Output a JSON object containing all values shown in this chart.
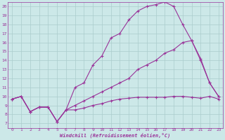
{
  "xlabel": "Windchill (Refroidissement éolien,°C)",
  "bg_color": "#cce8e8",
  "line_color": "#993399",
  "grid_color": "#aacccc",
  "xlim": [
    -0.5,
    23.5
  ],
  "ylim": [
    6.5,
    20.5
  ],
  "yticks": [
    7,
    8,
    9,
    10,
    11,
    12,
    13,
    14,
    15,
    16,
    17,
    18,
    19,
    20
  ],
  "xticks": [
    0,
    1,
    2,
    3,
    4,
    5,
    6,
    7,
    8,
    9,
    10,
    11,
    12,
    13,
    14,
    15,
    16,
    17,
    18,
    19,
    20,
    21,
    22,
    23
  ],
  "lines": [
    {
      "x": [
        0,
        1,
        2,
        3,
        4,
        5,
        6,
        7,
        8,
        9,
        10,
        11,
        12,
        13,
        14,
        15,
        16,
        17,
        18,
        19,
        20,
        21,
        22,
        23
      ],
      "y": [
        9.7,
        10.0,
        8.3,
        8.8,
        8.8,
        7.2,
        8.5,
        11.0,
        11.5,
        13.5,
        14.5,
        16.5,
        17.0,
        18.5,
        19.5,
        20.0,
        20.2,
        20.5,
        20.0,
        18.0,
        16.2,
        14.0,
        11.5,
        10.0
      ]
    },
    {
      "x": [
        0,
        1,
        2,
        3,
        4,
        5,
        6,
        7,
        8,
        9,
        10,
        11,
        12,
        13,
        14,
        15,
        16,
        17,
        18,
        19,
        20,
        21,
        22,
        23
      ],
      "y": [
        9.7,
        10.0,
        8.3,
        8.8,
        8.8,
        7.2,
        8.5,
        9.0,
        9.5,
        10.0,
        10.5,
        11.0,
        11.5,
        12.0,
        13.0,
        13.5,
        14.0,
        14.8,
        15.2,
        16.0,
        16.2,
        14.2,
        11.5,
        10.0
      ]
    },
    {
      "x": [
        0,
        1,
        2,
        3,
        4,
        5,
        6,
        7,
        8,
        9,
        10,
        11,
        12,
        13,
        14,
        15,
        16,
        17,
        18,
        19,
        20,
        21,
        22,
        23
      ],
      "y": [
        9.7,
        10.0,
        8.3,
        8.8,
        8.8,
        7.2,
        8.5,
        8.5,
        8.7,
        9.0,
        9.2,
        9.5,
        9.7,
        9.8,
        9.9,
        9.9,
        9.9,
        9.9,
        10.0,
        10.0,
        9.9,
        9.8,
        10.0,
        9.7
      ]
    }
  ]
}
